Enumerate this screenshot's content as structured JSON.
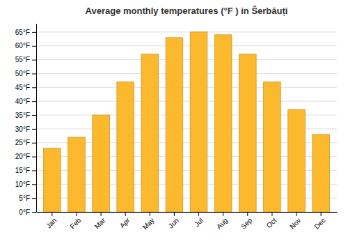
{
  "chart_data": {
    "type": "bar",
    "title": "Average monthly temperatures (°F ) in Ŝerbăuți",
    "categories": [
      "Jan",
      "Feb",
      "Mar",
      "Apr",
      "May",
      "Jun",
      "Jul",
      "Aug",
      "Sep",
      "Oct",
      "Nov",
      "Dec"
    ],
    "values": [
      23,
      27,
      35,
      47,
      57,
      63,
      65,
      64,
      57,
      47,
      37,
      28
    ],
    "color": "#FDB92E",
    "ylim": [
      0,
      68
    ],
    "yticks": [
      {
        "value": 0,
        "label": "0°F"
      },
      {
        "value": 5,
        "label": "5°F"
      },
      {
        "value": 10,
        "label": "10°F"
      },
      {
        "value": 15,
        "label": "15°F"
      },
      {
        "value": 20,
        "label": "20°F"
      },
      {
        "value": 25,
        "label": "25°F"
      },
      {
        "value": 30,
        "label": "30°F"
      },
      {
        "value": 35,
        "label": "35°F"
      },
      {
        "value": 40,
        "label": "40°F"
      },
      {
        "value": 45,
        "label": "45°F"
      },
      {
        "value": 50,
        "label": "50°F"
      },
      {
        "value": 55,
        "label": "55°F"
      },
      {
        "value": 60,
        "label": "60°F"
      },
      {
        "value": 65,
        "label": "65°F"
      }
    ],
    "grid": true
  }
}
